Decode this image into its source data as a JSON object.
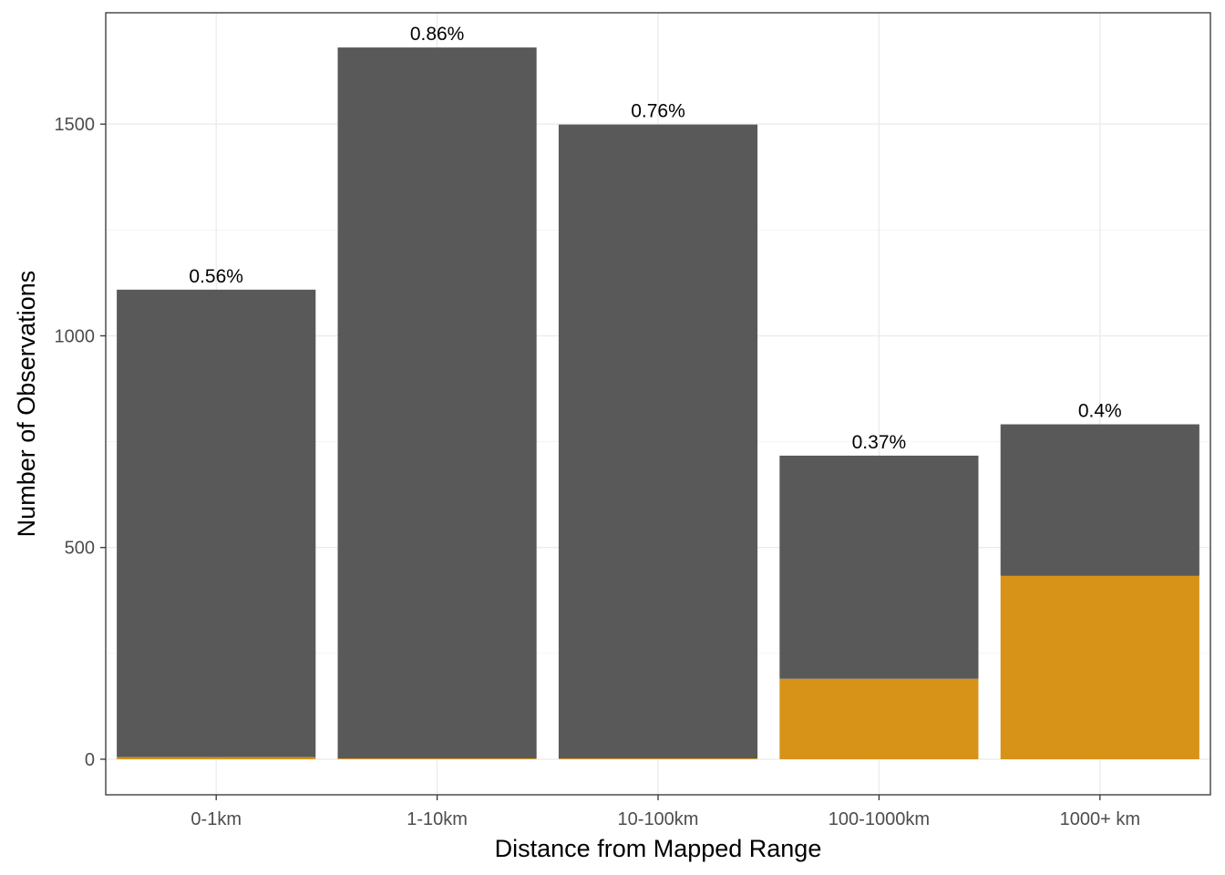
{
  "chart_data": {
    "type": "bar",
    "stacked": true,
    "categories": [
      "0-1km",
      "1-10km",
      "10-100km",
      "100-1000km",
      "1000+ km"
    ],
    "series": [
      {
        "color": "#595959",
        "values": [
          1104,
          1679,
          1497,
          527,
          358
        ]
      },
      {
        "color": "#D69318",
        "values": [
          5,
          2,
          2,
          190,
          433
        ]
      }
    ],
    "data_labels": [
      "0.56%",
      "0.86%",
      "0.76%",
      "0.37%",
      "0.4%"
    ],
    "xlabel": "Distance from Mapped Range",
    "ylabel": "Number of Observations",
    "yticks": [
      0,
      500,
      1000,
      1500
    ],
    "ylim": [
      -84,
      1763
    ],
    "grid": true,
    "legend": "none"
  }
}
